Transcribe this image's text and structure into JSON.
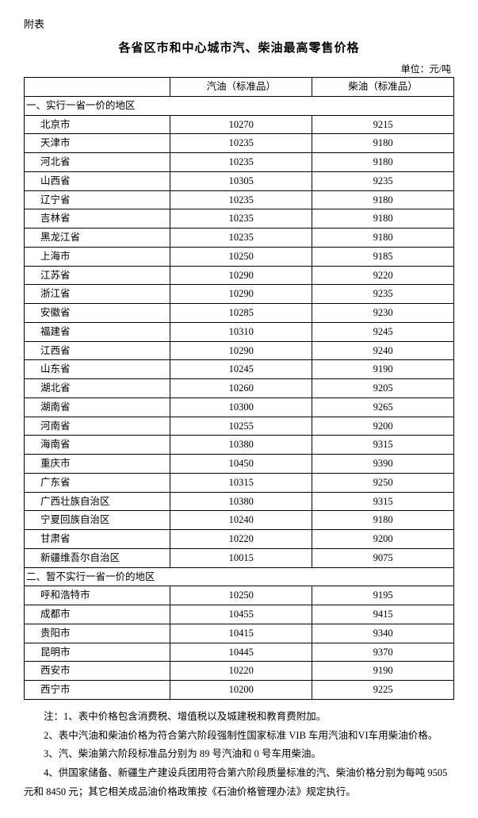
{
  "attachment_label": "附表",
  "title": "各省区市和中心城市汽、柴油最高零售价格",
  "unit": "单位：元/吨",
  "columns": {
    "name": "",
    "gasoline": "汽油（标准品）",
    "diesel": "柴油（标准品）"
  },
  "section1_label": "一、实行一省一价的地区",
  "section1_rows": [
    {
      "name": "北京市",
      "gas": "10270",
      "dsl": "9215"
    },
    {
      "name": "天津市",
      "gas": "10235",
      "dsl": "9180"
    },
    {
      "name": "河北省",
      "gas": "10235",
      "dsl": "9180"
    },
    {
      "name": "山西省",
      "gas": "10305",
      "dsl": "9235"
    },
    {
      "name": "辽宁省",
      "gas": "10235",
      "dsl": "9180"
    },
    {
      "name": "吉林省",
      "gas": "10235",
      "dsl": "9180"
    },
    {
      "name": "黑龙江省",
      "gas": "10235",
      "dsl": "9180"
    },
    {
      "name": "上海市",
      "gas": "10250",
      "dsl": "9185"
    },
    {
      "name": "江苏省",
      "gas": "10290",
      "dsl": "9220"
    },
    {
      "name": "浙江省",
      "gas": "10290",
      "dsl": "9235"
    },
    {
      "name": "安徽省",
      "gas": "10285",
      "dsl": "9230"
    },
    {
      "name": "福建省",
      "gas": "10310",
      "dsl": "9245"
    },
    {
      "name": "江西省",
      "gas": "10290",
      "dsl": "9240"
    },
    {
      "name": "山东省",
      "gas": "10245",
      "dsl": "9190"
    },
    {
      "name": "湖北省",
      "gas": "10260",
      "dsl": "9205"
    },
    {
      "name": "湖南省",
      "gas": "10300",
      "dsl": "9265"
    },
    {
      "name": "河南省",
      "gas": "10255",
      "dsl": "9200"
    },
    {
      "name": "海南省",
      "gas": "10380",
      "dsl": "9315"
    },
    {
      "name": "重庆市",
      "gas": "10450",
      "dsl": "9390"
    },
    {
      "name": "广东省",
      "gas": "10315",
      "dsl": "9250"
    },
    {
      "name": "广西壮族自治区",
      "gas": "10380",
      "dsl": "9315"
    },
    {
      "name": "宁夏回族自治区",
      "gas": "10240",
      "dsl": "9180"
    },
    {
      "name": "甘肃省",
      "gas": "10220",
      "dsl": "9200"
    },
    {
      "name": "新疆维吾尔自治区",
      "gas": "10015",
      "dsl": "9075"
    }
  ],
  "section2_label": "二、暂不实行一省一价的地区",
  "section2_rows": [
    {
      "name": "呼和浩特市",
      "gas": "10250",
      "dsl": "9195"
    },
    {
      "name": "成都市",
      "gas": "10455",
      "dsl": "9415"
    },
    {
      "name": "贵阳市",
      "gas": "10415",
      "dsl": "9340"
    },
    {
      "name": "昆明市",
      "gas": "10445",
      "dsl": "9370"
    },
    {
      "name": "西安市",
      "gas": "10220",
      "dsl": "9190"
    },
    {
      "name": "西宁市",
      "gas": "10200",
      "dsl": "9225"
    }
  ],
  "notes_label": "注：",
  "notes": [
    "1、表中价格包含消费税、增值税以及城建税和教育费附加。",
    "2、表中汽油和柴油价格为符合第六阶段强制性国家标准 VIB 车用汽油和VI车用柴油价格。",
    "3、汽、柴油第六阶段标准品分别为 89 号汽油和 0 号车用柴油。",
    "4、供国家储备、新疆生产建设兵团用符合第六阶段质量标准的汽、柴油价格分别为每吨 9505 元和 8450 元；其它相关成品油价格政策按《石油价格管理办法》规定执行。"
  ]
}
